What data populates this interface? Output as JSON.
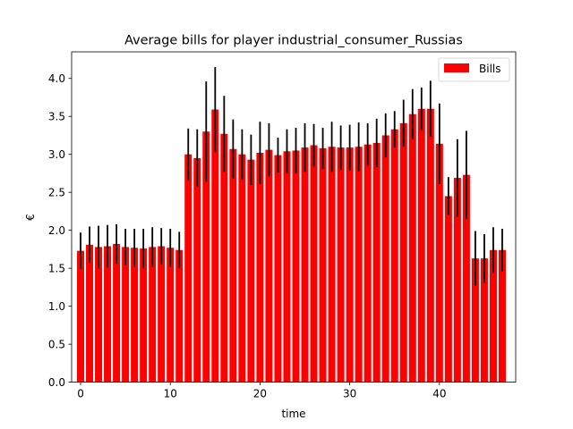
{
  "chart_data": {
    "type": "bar",
    "title": "Average bills for player industrial_consumer_Russias",
    "xlabel": "time",
    "ylabel": "€",
    "xlim": [
      -1,
      48.5
    ],
    "ylim": [
      0,
      4.35
    ],
    "xticks": [
      0,
      10,
      20,
      30,
      40
    ],
    "yticks": [
      0.0,
      0.5,
      1.0,
      1.5,
      2.0,
      2.5,
      3.0,
      3.5,
      4.0
    ],
    "legend": {
      "position": "top-right"
    },
    "series": [
      {
        "name": "Bills",
        "color": "#ff0000",
        "error_color": "#000000",
        "x": [
          0,
          1,
          2,
          3,
          4,
          5,
          6,
          7,
          8,
          9,
          10,
          11,
          12,
          13,
          14,
          15,
          16,
          17,
          18,
          19,
          20,
          21,
          22,
          23,
          24,
          25,
          26,
          27,
          28,
          29,
          30,
          31,
          32,
          33,
          34,
          35,
          36,
          37,
          38,
          39,
          40,
          41,
          42,
          43,
          44,
          45,
          46,
          47
        ],
        "values": [
          1.73,
          1.81,
          1.78,
          1.79,
          1.82,
          1.78,
          1.77,
          1.76,
          1.78,
          1.79,
          1.77,
          1.74,
          3.0,
          2.95,
          3.3,
          3.59,
          3.27,
          3.07,
          3.0,
          2.93,
          3.02,
          3.06,
          2.99,
          3.04,
          3.05,
          3.09,
          3.12,
          3.08,
          3.1,
          3.09,
          3.09,
          3.1,
          3.13,
          3.15,
          3.25,
          3.33,
          3.41,
          3.53,
          3.6,
          3.6,
          3.14,
          2.45,
          2.69,
          2.73,
          1.63,
          1.63,
          1.74,
          1.74
        ],
        "errors": [
          0.24,
          0.24,
          0.28,
          0.28,
          0.26,
          0.24,
          0.25,
          0.26,
          0.26,
          0.24,
          0.25,
          0.24,
          0.34,
          0.38,
          0.66,
          0.56,
          0.5,
          0.39,
          0.33,
          0.33,
          0.41,
          0.35,
          0.23,
          0.29,
          0.3,
          0.32,
          0.28,
          0.27,
          0.33,
          0.29,
          0.3,
          0.32,
          0.28,
          0.32,
          0.29,
          0.24,
          0.31,
          0.33,
          0.28,
          0.37,
          0.53,
          0.25,
          0.51,
          0.58,
          0.36,
          0.32,
          0.3,
          0.28
        ]
      }
    ]
  }
}
